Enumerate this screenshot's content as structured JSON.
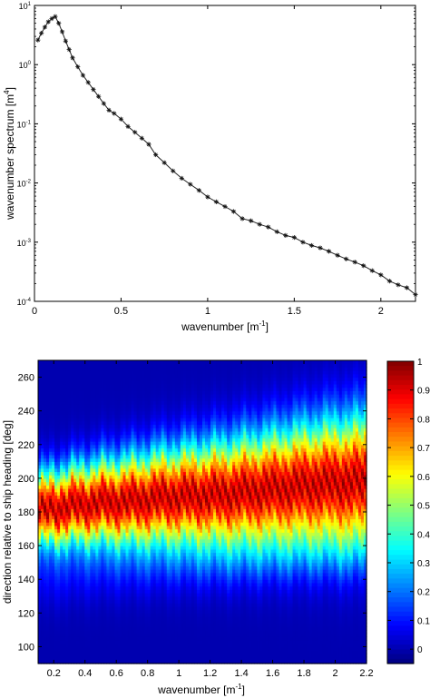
{
  "chart_data": [
    {
      "type": "line",
      "xlabel_main": "wavenumber [m",
      "xlabel_sup": "-1",
      "xlabel_end": "]",
      "ylabel_main": "wavenumber spectrum [m",
      "ylabel_sup": "4",
      "ylabel_end": "]",
      "x_scale": "linear",
      "y_scale": "log",
      "xlim": [
        0,
        2.2
      ],
      "ylim": [
        0.0001,
        10
      ],
      "xticks": [
        "0",
        "0.5",
        "1",
        "1.5",
        "2"
      ],
      "xtick_values": [
        0,
        0.5,
        1,
        1.5,
        2
      ],
      "yticks": [
        {
          "base": "10",
          "exp": "-4",
          "value": 0.0001
        },
        {
          "base": "10",
          "exp": "-3",
          "value": 0.001
        },
        {
          "base": "10",
          "exp": "-2",
          "value": 0.01
        },
        {
          "base": "10",
          "exp": "-1",
          "value": 0.1
        },
        {
          "base": "10",
          "exp": "0",
          "value": 1
        },
        {
          "base": "10",
          "exp": "1",
          "value": 10
        }
      ],
      "marker": "asterisk",
      "series": [
        {
          "x": [
            0.02,
            0.04,
            0.06,
            0.08,
            0.1,
            0.12,
            0.14,
            0.16,
            0.18,
            0.2,
            0.22,
            0.25,
            0.28,
            0.31,
            0.34,
            0.37,
            0.4,
            0.43,
            0.46,
            0.5,
            0.54,
            0.58,
            0.62,
            0.66,
            0.7,
            0.75,
            0.8,
            0.85,
            0.9,
            0.95,
            1.0,
            1.05,
            1.1,
            1.15,
            1.2,
            1.25,
            1.3,
            1.35,
            1.4,
            1.45,
            1.5,
            1.55,
            1.6,
            1.65,
            1.7,
            1.75,
            1.8,
            1.85,
            1.9,
            1.95,
            2.0,
            2.05,
            2.1,
            2.15,
            2.2
          ],
          "y": [
            2.6,
            3.4,
            4.3,
            5.3,
            6.0,
            6.5,
            5.0,
            3.6,
            2.5,
            1.8,
            1.3,
            0.92,
            0.66,
            0.5,
            0.38,
            0.29,
            0.22,
            0.17,
            0.15,
            0.12,
            0.09,
            0.072,
            0.057,
            0.045,
            0.03,
            0.022,
            0.016,
            0.012,
            0.0095,
            0.0075,
            0.0058,
            0.0048,
            0.004,
            0.0033,
            0.0025,
            0.0023,
            0.002,
            0.0018,
            0.0015,
            0.0013,
            0.0012,
            0.001,
            0.00088,
            0.0008,
            0.0007,
            0.0006,
            0.00052,
            0.00046,
            0.0004,
            0.00033,
            0.00028,
            0.00022,
            0.00019,
            0.00017,
            0.00013
          ]
        }
      ]
    },
    {
      "type": "heatmap",
      "xlabel_main": "wavenumber [m",
      "xlabel_sup": "-1",
      "xlabel_end": "]",
      "ylabel": "direction relative to ship heading [deg]",
      "xlim": [
        0.1,
        2.2
      ],
      "ylim": [
        90,
        270
      ],
      "xticks": [
        "0.2",
        "0.4",
        "0.6",
        "0.8",
        "1",
        "1.2",
        "1.4",
        "1.6",
        "1.8",
        "2",
        "2.2"
      ],
      "xtick_values": [
        0.2,
        0.4,
        0.6,
        0.8,
        1.0,
        1.2,
        1.4,
        1.6,
        1.8,
        2.0,
        2.2
      ],
      "yticks": [
        "100",
        "120",
        "140",
        "160",
        "180",
        "200",
        "220",
        "240",
        "260"
      ],
      "ytick_values": [
        100,
        120,
        140,
        160,
        180,
        200,
        220,
        240,
        260
      ],
      "colormap": "jet",
      "colorbar_ticks": [
        "0",
        "0.1",
        "0.2",
        "0.3",
        "0.4",
        "0.5",
        "0.6",
        "0.7",
        "0.8",
        "0.9",
        "1"
      ],
      "colorbar_values": [
        0,
        0.1,
        0.2,
        0.3,
        0.4,
        0.5,
        0.6,
        0.7,
        0.8,
        0.9,
        1
      ],
      "clim": [
        -0.05,
        1
      ],
      "peak_direction": {
        "x": [
          0.1,
          0.3,
          0.5,
          0.7,
          0.9,
          1.1,
          1.3,
          1.5,
          1.7,
          1.9,
          2.1,
          2.2
        ],
        "deg": [
          181,
          184,
          186,
          187,
          189,
          190,
          191,
          193,
          195,
          197,
          198,
          199
        ]
      },
      "spread_deg": {
        "x": [
          0.1,
          0.3,
          0.5,
          0.7,
          0.9,
          1.1,
          1.3,
          1.5,
          1.7,
          1.9,
          2.1,
          2.2
        ],
        "sigma": [
          13,
          14,
          15,
          16,
          17,
          18,
          19,
          20,
          21,
          22,
          23,
          23
        ]
      }
    }
  ]
}
